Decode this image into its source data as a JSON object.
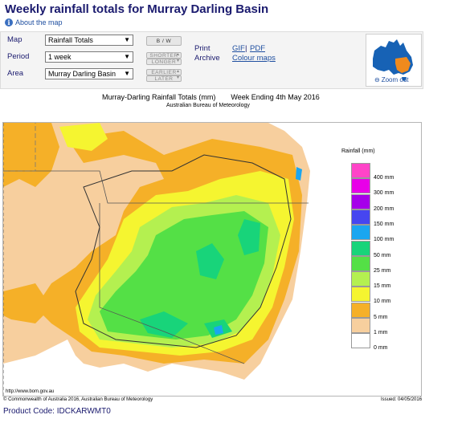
{
  "page": {
    "title": "Weekly rainfall totals for Murray Darling Basin",
    "about_link": "About the map"
  },
  "controls": {
    "map_label": "Map",
    "map_value": "Rainfall Totals",
    "period_label": "Period",
    "period_value": "1 week",
    "area_label": "Area",
    "area_value": "Murray Darling Basin",
    "bw_button": "B / W",
    "shorter_button": "SHORTER",
    "longer_button": "LONGER",
    "earlier_button": "EARLIER",
    "later_button": "LATER",
    "print_label": "Print",
    "archive_label": "Archive",
    "gif_link": "GIF",
    "separator": "|",
    "pdf_link": "PDF",
    "colour_maps_link": "Colour maps",
    "zoom_out": "Zoom out"
  },
  "map": {
    "title_left": "Murray-Darling Rainfall Totals (mm)",
    "title_right": "Week Ending 4th May 2016",
    "subtitle": "Australian Bureau of Meteorology",
    "url": "http://www.bom.gov.au",
    "copyright": "© Commonwealth of Australia 2016, Australian Bureau of Meteorology",
    "issued": "Issued: 04/05/2016",
    "legend_title": "Rainfall (mm)",
    "legend": [
      {
        "label": "400 mm",
        "color": "#ff44c8"
      },
      {
        "label": "300 mm",
        "color": "#e800e8"
      },
      {
        "label": "200 mm",
        "color": "#a600ea"
      },
      {
        "label": "150 mm",
        "color": "#4646f0"
      },
      {
        "label": "100 mm",
        "color": "#1aa6f0"
      },
      {
        "label": "50 mm",
        "color": "#18d47a"
      },
      {
        "label": "25 mm",
        "color": "#54e046"
      },
      {
        "label": "15 mm",
        "color": "#b4f050"
      },
      {
        "label": "10 mm",
        "color": "#f5f530"
      },
      {
        "label": "5 mm",
        "color": "#f5b028"
      },
      {
        "label": "1 mm",
        "color": "#f7cf9e"
      },
      {
        "label": "0 mm",
        "color": "#ffffff"
      }
    ]
  },
  "footer": {
    "product_code_label": "Product Code:",
    "product_code_value": "IDCKARWMT0"
  }
}
